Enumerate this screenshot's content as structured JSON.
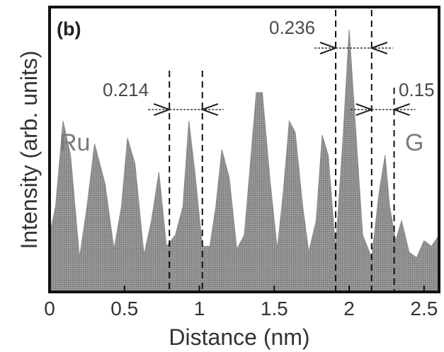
{
  "chart_data": {
    "type": "area",
    "panel_label": "(b)",
    "xlabel": "Distance (nm)",
    "ylabel": "Intensity (arb. units)",
    "xlim": [
      0,
      2.6
    ],
    "ylim": [
      0,
      1
    ],
    "x_ticks": [
      0,
      0.5,
      1,
      1.5,
      2,
      2.5
    ],
    "x_tick_labels": [
      "0",
      "0.5",
      "1",
      "1.5",
      "2",
      "2.5"
    ],
    "grid": false,
    "fill_color": "#a6a6a6",
    "series": [
      {
        "values_note": "",
        "x": [
          0.0,
          0.04,
          0.09,
          0.14,
          0.2,
          0.25,
          0.3,
          0.37,
          0.43,
          0.48,
          0.52,
          0.57,
          0.63,
          0.68,
          0.73,
          0.78,
          0.84,
          0.89,
          0.93,
          0.97,
          1.02,
          1.07,
          1.11,
          1.15,
          1.2,
          1.25,
          1.3,
          1.34,
          1.38,
          1.42,
          1.47,
          1.52,
          1.56,
          1.6,
          1.64,
          1.69,
          1.73,
          1.78,
          1.82,
          1.86,
          1.91,
          1.96,
          2.0,
          2.04,
          2.09,
          2.15,
          2.2,
          2.24,
          2.27,
          2.31,
          2.35,
          2.4,
          2.45,
          2.5,
          2.55,
          2.6
        ],
        "values": [
          0.2,
          0.3,
          0.6,
          0.48,
          0.12,
          0.3,
          0.52,
          0.38,
          0.15,
          0.3,
          0.54,
          0.45,
          0.13,
          0.25,
          0.42,
          0.16,
          0.2,
          0.3,
          0.6,
          0.42,
          0.16,
          0.16,
          0.3,
          0.5,
          0.4,
          0.15,
          0.2,
          0.45,
          0.7,
          0.7,
          0.4,
          0.15,
          0.35,
          0.6,
          0.56,
          0.3,
          0.14,
          0.25,
          0.55,
          0.48,
          0.15,
          0.55,
          0.92,
          0.6,
          0.2,
          0.12,
          0.35,
          0.48,
          0.3,
          0.18,
          0.25,
          0.14,
          0.12,
          0.18,
          0.16,
          0.2
        ]
      }
    ],
    "markers": [
      {
        "label": "0.214",
        "x_left": 0.8,
        "x_right": 1.02
      },
      {
        "label": "0.236",
        "x_left": 1.91,
        "x_right": 2.15
      },
      {
        "label": "0.15",
        "x_left": 2.15,
        "x_right": 2.3
      }
    ],
    "region_labels": [
      "Ru",
      "G"
    ]
  }
}
